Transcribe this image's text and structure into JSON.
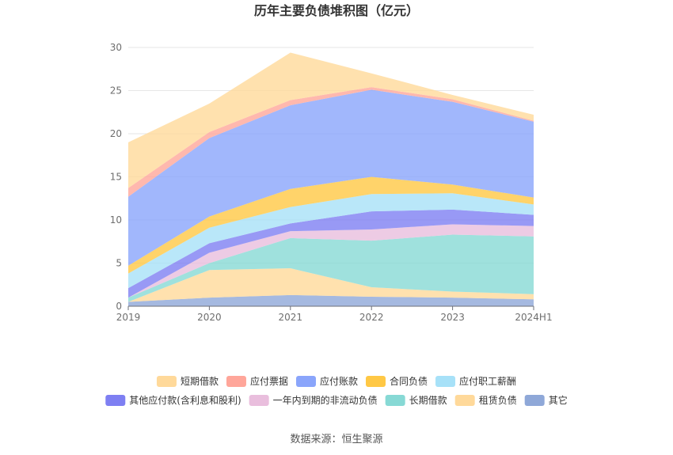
{
  "chart_data": {
    "type": "area",
    "stacked": true,
    "title": "历年主要负债堆积图（亿元）",
    "xlabel": "",
    "ylabel": "",
    "categories": [
      "2019",
      "2020",
      "2021",
      "2022",
      "2023",
      "2024H1"
    ],
    "ylim": [
      0,
      30
    ],
    "yticks": [
      0,
      5,
      10,
      15,
      20,
      25,
      30
    ],
    "grid": true,
    "legend_position": "bottom",
    "series": [
      {
        "name": "其它",
        "color": "#8fa8d8",
        "values": [
          0.5,
          1.0,
          1.3,
          1.1,
          1.0,
          0.8
        ]
      },
      {
        "name": "租赁负债",
        "color": "#ffd99a",
        "values": [
          0.0,
          3.2,
          3.1,
          1.1,
          0.7,
          0.6
        ]
      },
      {
        "name": "长期借款",
        "color": "#87d9d5",
        "values": [
          0.5,
          0.8,
          3.5,
          5.4,
          6.6,
          6.7
        ]
      },
      {
        "name": "一年内到期的非流动负债",
        "color": "#e9bedd",
        "values": [
          0.0,
          1.2,
          0.8,
          1.3,
          1.2,
          1.2
        ]
      },
      {
        "name": "其他应付款(含利息和股利)",
        "color": "#7e7ff2",
        "values": [
          1.1,
          1.1,
          0.9,
          2.1,
          1.7,
          1.3
        ]
      },
      {
        "name": "应付职工薪酬",
        "color": "#a7e1f8",
        "values": [
          1.7,
          1.8,
          1.9,
          2.0,
          1.9,
          1.2
        ]
      },
      {
        "name": "合同负债",
        "color": "#ffc845",
        "values": [
          0.9,
          1.3,
          2.1,
          2.0,
          1.0,
          0.8
        ]
      },
      {
        "name": "应付账款",
        "color": "#8aa5fb",
        "values": [
          8.0,
          9.1,
          9.7,
          10.1,
          9.6,
          8.8
        ]
      },
      {
        "name": "应付票据",
        "color": "#ffa69a",
        "values": [
          1.0,
          0.7,
          0.6,
          0.3,
          0.3,
          0.1
        ]
      },
      {
        "name": "短期借款",
        "color": "#ffd99a",
        "values": [
          5.3,
          3.3,
          5.5,
          1.6,
          0.5,
          0.7
        ]
      }
    ]
  },
  "legend_order": [
    "短期借款",
    "应付票据",
    "应付账款",
    "合同负债",
    "应付职工薪酬",
    "其他应付款(含利息和股利)",
    "一年内到期的非流动负债",
    "长期借款",
    "租赁负债",
    "其它"
  ],
  "source": "数据来源：恒生聚源"
}
